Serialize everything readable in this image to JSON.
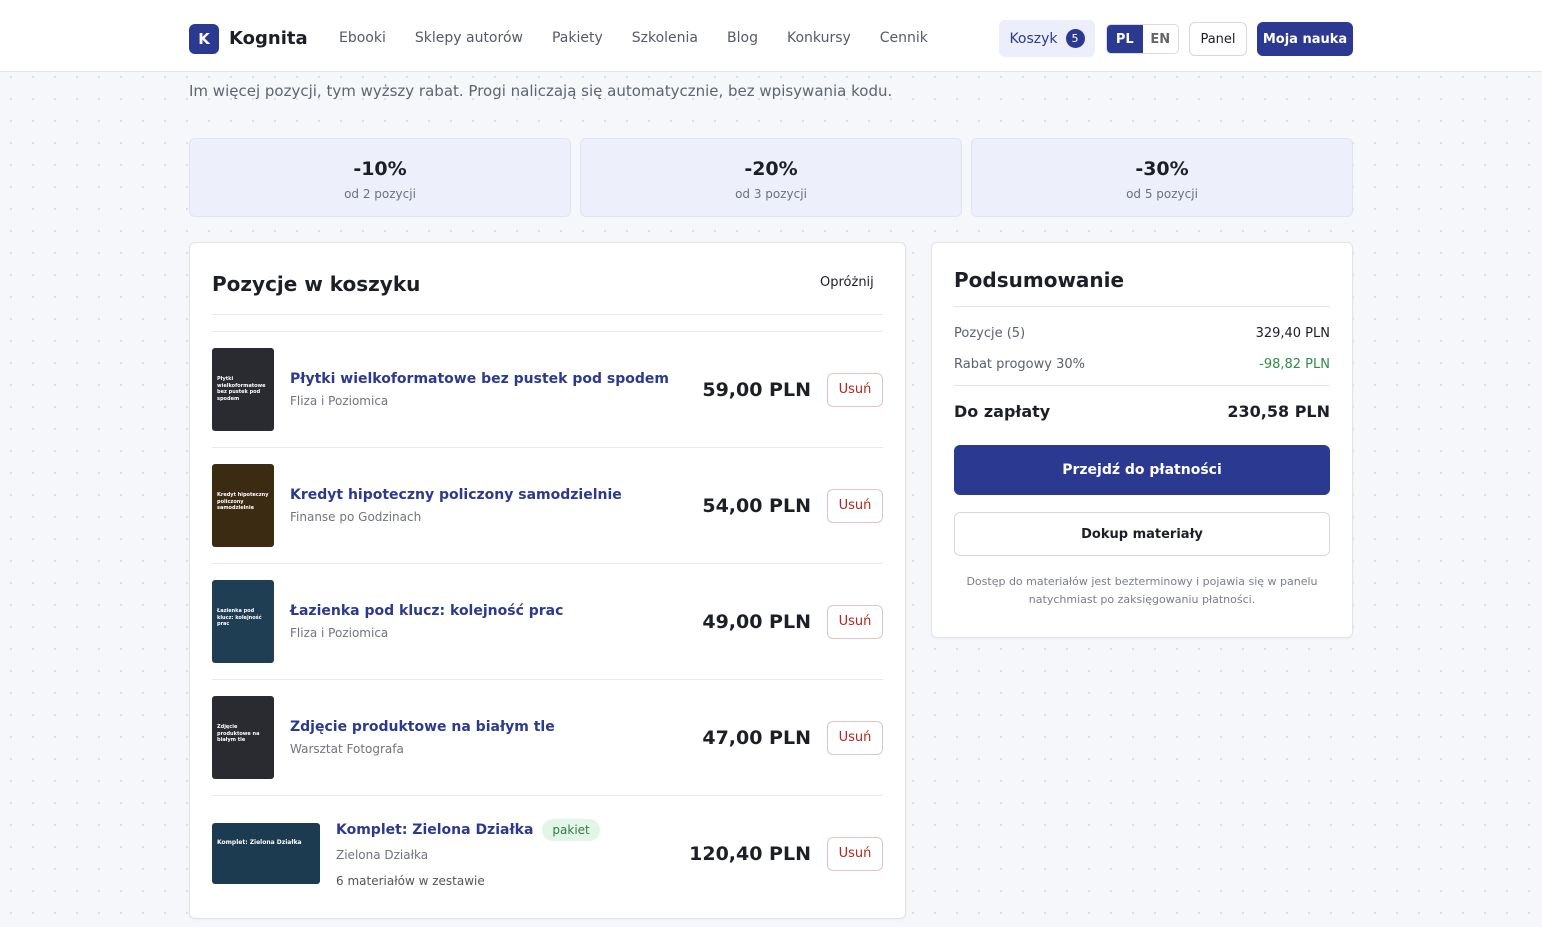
{
  "header": {
    "logo_letter": "K",
    "brand": "Kognita",
    "nav": [
      "Ebooki",
      "Sklepy autorów",
      "Pakiety",
      "Szkolenia",
      "Blog",
      "Konkursy",
      "Cennik"
    ],
    "cart": "Koszyk",
    "cart_count": "5",
    "languages": [
      "PL",
      "EN"
    ],
    "panel": "Panel",
    "cta": "Moja nauka"
  },
  "intro": "Im więcej pozycji, tym wyższy rabat. Progi naliczają się automatycznie, bez wpisywania kodu.",
  "tiers": [
    {
      "discount": "-10%",
      "condition": "od 2 pozycji"
    },
    {
      "discount": "-20%",
      "condition": "od 3 pozycji"
    },
    {
      "discount": "-30%",
      "condition": "od 5 pozycji"
    }
  ],
  "cart": {
    "title": "Pozycje w koszyku",
    "clear": "Opróżnij",
    "items": [
      {
        "title": "Płytki wielkoformatowe bez pustek pod spodem",
        "author": "Fliza i Poziomica",
        "price": "59,00 PLN",
        "remove": "Usuń",
        "cover_color": "#2a2b30"
      },
      {
        "title": "Kredyt hipoteczny policzony samodzielnie",
        "author": "Finanse po Godzinach",
        "price": "54,00 PLN",
        "remove": "Usuń",
        "cover_color": "#3b2b12"
      },
      {
        "title": "Łazienka pod klucz: kolejność prac",
        "author": "Fliza i Poziomica",
        "price": "49,00 PLN",
        "remove": "Usuń",
        "cover_color": "#1f3e53"
      },
      {
        "title": "Zdjęcie produktowe na białym tle",
        "author": "Warsztat Fotografa",
        "price": "47,00 PLN",
        "remove": "Usuń",
        "cover_color": "#2a2b30"
      },
      {
        "title": "Komplet: Zielona Działka",
        "badge": "pakiet",
        "author": "Zielona Działka",
        "note": "6 materiałów w zestawie",
        "price": "120,40 PLN",
        "remove": "Usuń",
        "cover_color": "#1d3b50"
      }
    ]
  },
  "summary": {
    "title": "Podsumowanie",
    "rows": [
      {
        "label": "Pozycje (5)",
        "value": "329,40 PLN"
      },
      {
        "label": "Rabat progowy 30%",
        "value": "-98,82 PLN"
      }
    ],
    "total_label": "Do zapłaty",
    "total_value": "230,58 PLN",
    "checkout": "Przejdź do płatności",
    "more": "Dokup materiały",
    "footnote": "Dostęp do materiałów jest bezterminowy i pojawia się w panelu natychmiast po zaksięgowaniu płatności."
  }
}
